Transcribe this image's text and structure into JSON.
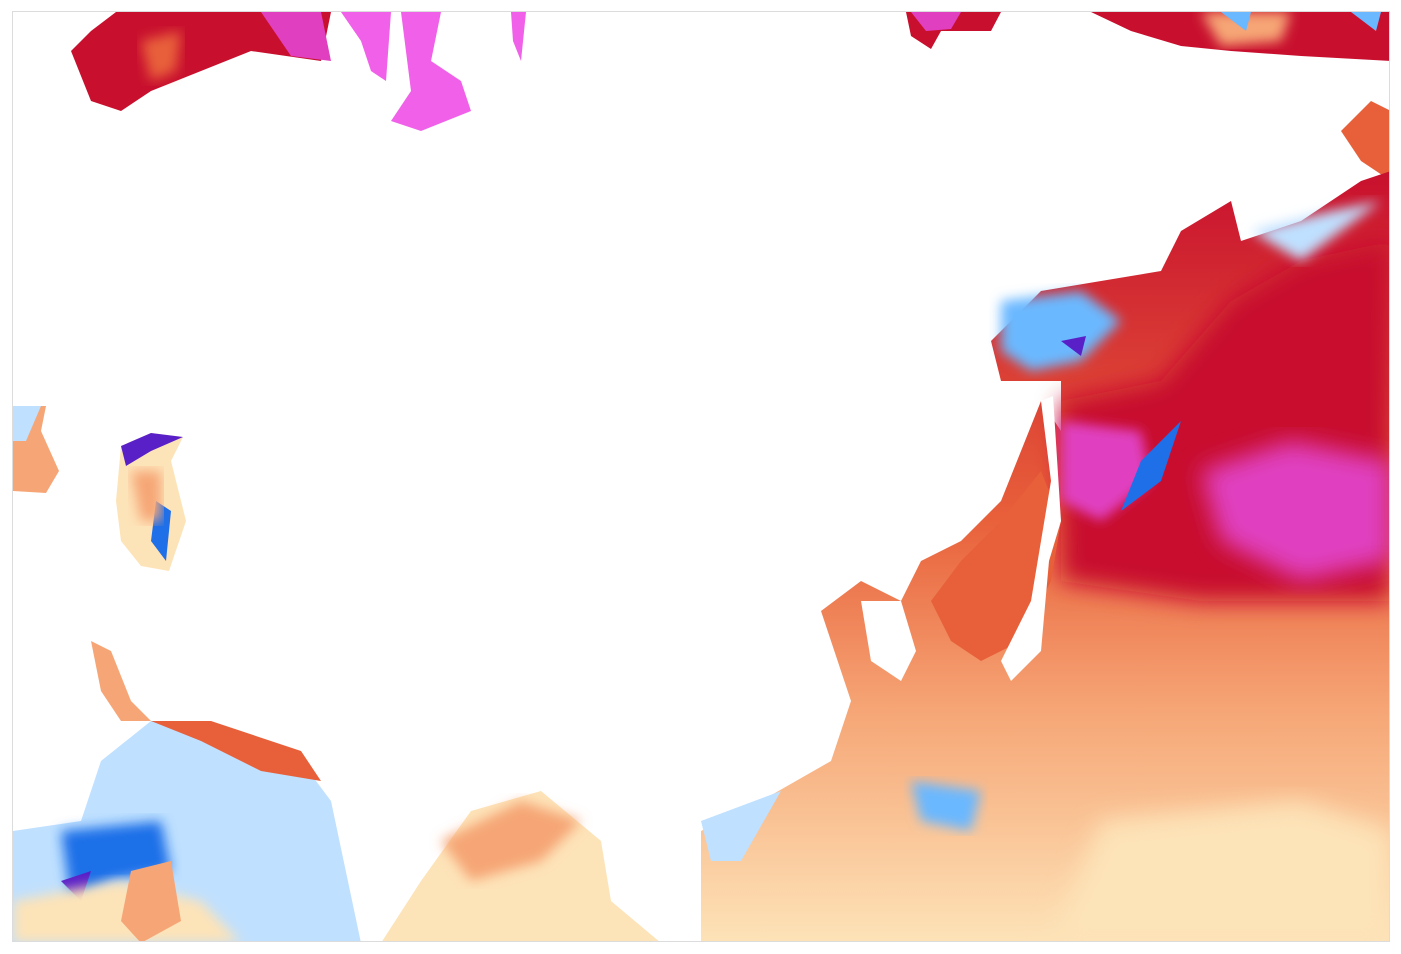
{
  "map": {
    "kind": "sea-surface-temperature-anomaly",
    "land_color": "#ffffff",
    "frame_color": "#dcdcdc",
    "palette": {
      "extreme_warm": "#e040c0",
      "very_warm": "#c8102e",
      "warm": "#e8603a",
      "mild_warm": "#f6a676",
      "slight_warm": "#fde3b8",
      "neutral": "#fff8e8",
      "slight_cool": "#bfe0ff",
      "cool": "#6ab8ff",
      "very_cool": "#1f6fe8",
      "extreme_cool": "#5a20c8",
      "ice_extreme": "#f060e8"
    }
  }
}
